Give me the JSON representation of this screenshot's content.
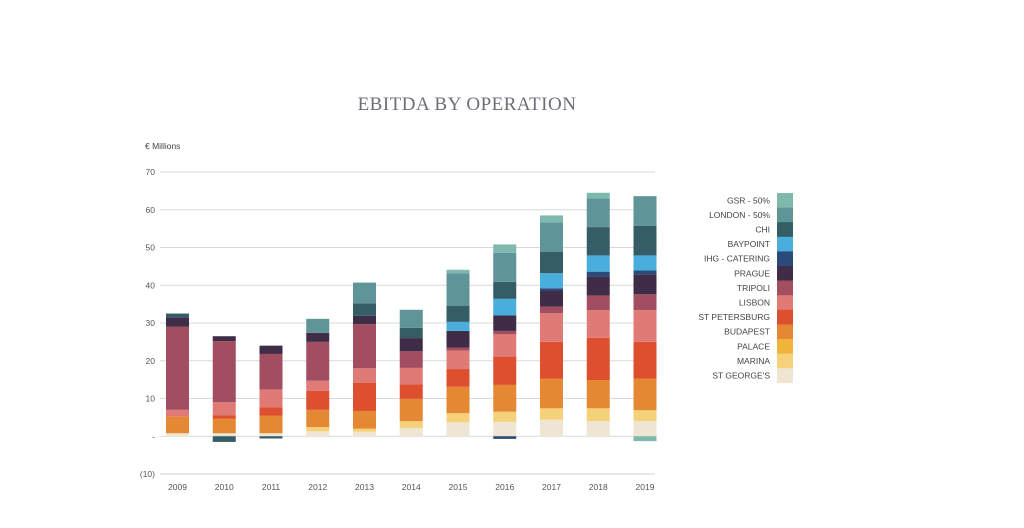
{
  "chart_data": {
    "type": "bar",
    "stacked": true,
    "title": "EBITDA BY OPERATION",
    "ylabel": "€ Millions",
    "xlabel": "",
    "ylim": [
      -10,
      70
    ],
    "yticks": [
      {
        "value": 70,
        "label": "70"
      },
      {
        "value": 60,
        "label": "60"
      },
      {
        "value": 50,
        "label": "50"
      },
      {
        "value": 40,
        "label": "40"
      },
      {
        "value": 30,
        "label": "30"
      },
      {
        "value": 20,
        "label": "20"
      },
      {
        "value": 10,
        "label": "10"
      },
      {
        "value": 0,
        "label": "-"
      },
      {
        "value": -10,
        "label": "(10)"
      }
    ],
    "grid": true,
    "legend_position": "right",
    "categories": [
      "2009",
      "2010",
      "2011",
      "2012",
      "2013",
      "2014",
      "2015",
      "2016",
      "2017",
      "2018",
      "2019"
    ],
    "series": [
      {
        "name": "ST GEORGE'S",
        "color": "#efe5d3",
        "values": [
          0.8,
          0.8,
          0.8,
          1.3,
          1.2,
          2.2,
          3.7,
          3.8,
          4.4,
          4.0,
          4.0
        ]
      },
      {
        "name": "MARINA",
        "color": "#f5d27a",
        "values": [
          0,
          0,
          0,
          1.1,
          0.8,
          1.8,
          2.4,
          2.7,
          3.0,
          3.4,
          2.9
        ]
      },
      {
        "name": "PALACE",
        "color": "#f0b43c",
        "values": [
          0,
          0,
          0,
          0,
          0,
          0,
          0,
          0,
          0,
          0,
          0
        ]
      },
      {
        "name": "BUDAPEST",
        "color": "#e58834",
        "values": [
          4.4,
          3.9,
          4.7,
          4.6,
          4.7,
          5.9,
          7.0,
          7.1,
          7.9,
          7.5,
          8.4
        ]
      },
      {
        "name": "ST PETERSBURG",
        "color": "#dd4f2e",
        "values": [
          0,
          0.8,
          2.2,
          5.0,
          7.5,
          3.8,
          4.7,
          7.5,
          9.7,
          11.2,
          9.7
        ]
      },
      {
        "name": "LISBON",
        "color": "#e07a76",
        "values": [
          1.8,
          3.5,
          4.7,
          2.7,
          3.8,
          4.4,
          4.9,
          5.9,
          7.6,
          7.3,
          8.4
        ]
      },
      {
        "name": "TRIPOLI",
        "color": "#a34e60",
        "values": [
          22.0,
          16.2,
          9.4,
          10.3,
          11.7,
          4.4,
          0.8,
          0.9,
          1.7,
          3.9,
          4.2
        ]
      },
      {
        "name": "PRAGUE",
        "color": "#3f2d47",
        "values": [
          2.5,
          1.3,
          2.2,
          2.4,
          2.2,
          3.5,
          4.4,
          4.1,
          4.3,
          4.9,
          5.3
        ]
      },
      {
        "name": "IHG - CATERING",
        "color": "#2b4a7a",
        "values": [
          0,
          0,
          0,
          0,
          0,
          0,
          0,
          -0.7,
          0.6,
          1.4,
          1.0
        ]
      },
      {
        "name": "BAYPOINT",
        "color": "#4aaedc",
        "values": [
          0,
          0,
          0,
          0,
          0,
          0,
          2.4,
          4.4,
          4.0,
          4.3,
          4.0
        ]
      },
      {
        "name": "CHI",
        "color": "#345d66",
        "values": [
          1.0,
          -1.5,
          -0.6,
          0,
          3.3,
          2.7,
          4.2,
          4.5,
          5.7,
          7.5,
          7.8
        ]
      },
      {
        "name": "LONDON - 50%",
        "color": "#5f9498",
        "values": [
          0,
          0,
          0,
          3.7,
          5.5,
          4.8,
          8.7,
          7.7,
          7.8,
          7.6,
          7.9
        ]
      },
      {
        "name": "GSR - 50%",
        "color": "#7fb9ae",
        "values": [
          0,
          0,
          0,
          0,
          0,
          0,
          0.9,
          2.2,
          1.8,
          1.5,
          -1.3
        ]
      }
    ],
    "legend_order": [
      "GSR - 50%",
      "LONDON - 50%",
      "CHI",
      "BAYPOINT",
      "IHG - CATERING",
      "PRAGUE",
      "TRIPOLI",
      "LISBON",
      "ST PETERSBURG",
      "BUDAPEST",
      "PALACE",
      "MARINA",
      "ST GEORGE'S"
    ]
  },
  "colors": {
    "grid": "#d9d9d9",
    "title": "#6e6e78"
  }
}
